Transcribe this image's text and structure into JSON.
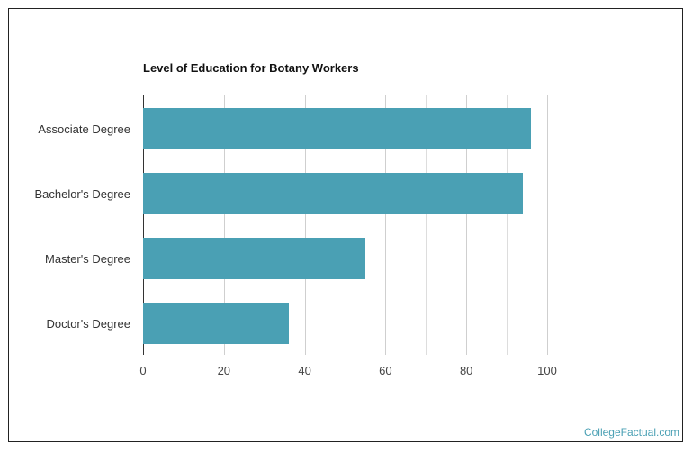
{
  "chart_data": {
    "type": "bar",
    "orientation": "horizontal",
    "title": "Level of Education for Botany Workers",
    "categories": [
      "Associate Degree",
      "Bachelor's Degree",
      "Master's Degree",
      "Doctor's Degree"
    ],
    "values": [
      96,
      94,
      55,
      36
    ],
    "xlabel": "",
    "ylabel": "",
    "xlim": [
      0,
      100
    ],
    "xticks": [
      "0",
      "20",
      "40",
      "60",
      "80",
      "100"
    ],
    "grid": true,
    "bar_color": "#4aa0b4"
  },
  "credit": {
    "label": "CollegeFactual.com",
    "color": "#4aa0b4"
  }
}
